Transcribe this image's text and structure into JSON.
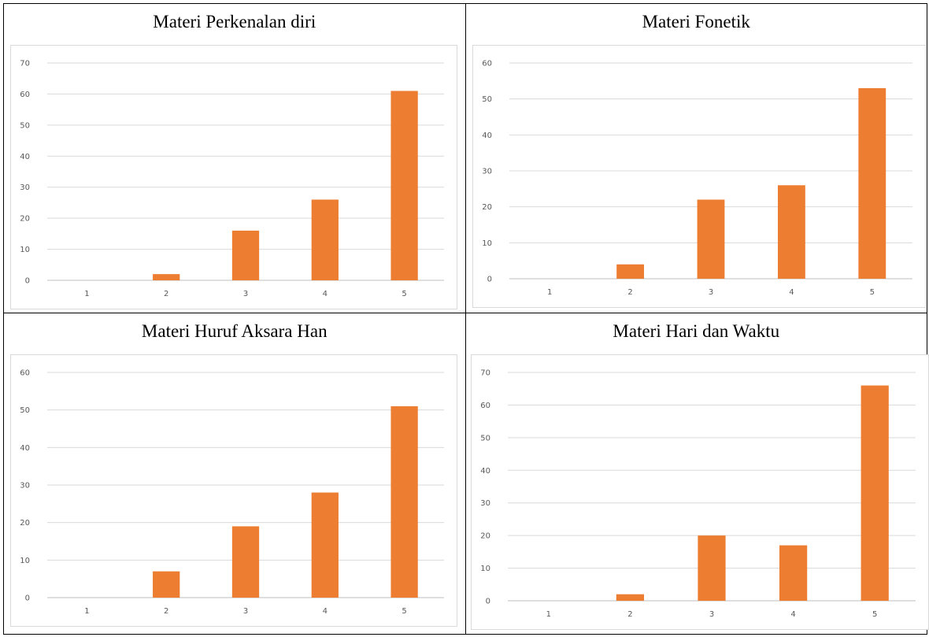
{
  "chart_data": [
    {
      "type": "bar",
      "title": "Materi Perkenalan diri",
      "categories": [
        "1",
        "2",
        "3",
        "4",
        "5"
      ],
      "values": [
        0,
        2,
        16,
        26,
        61
      ],
      "ylim": [
        0,
        70
      ],
      "yticks": [
        0,
        10,
        20,
        30,
        40,
        50,
        60,
        70
      ],
      "grid": true,
      "color": "#ED7D31"
    },
    {
      "type": "bar",
      "title": "Materi Fonetik",
      "categories": [
        "1",
        "2",
        "3",
        "4",
        "5"
      ],
      "values": [
        0,
        4,
        22,
        26,
        53
      ],
      "ylim": [
        0,
        60
      ],
      "yticks": [
        0,
        10,
        20,
        30,
        40,
        50,
        60
      ],
      "grid": true,
      "color": "#ED7D31"
    },
    {
      "type": "bar",
      "title": "Materi Huruf Aksara Han",
      "categories": [
        "1",
        "2",
        "3",
        "4",
        "5"
      ],
      "values": [
        0,
        7,
        19,
        28,
        51
      ],
      "ylim": [
        0,
        60
      ],
      "yticks": [
        0,
        10,
        20,
        30,
        40,
        50,
        60
      ],
      "grid": true,
      "color": "#ED7D31"
    },
    {
      "type": "bar",
      "title": "Materi Hari dan Waktu",
      "categories": [
        "1",
        "2",
        "3",
        "4",
        "5"
      ],
      "values": [
        0,
        2,
        20,
        17,
        66
      ],
      "ylim": [
        0,
        70
      ],
      "yticks": [
        0,
        10,
        20,
        30,
        40,
        50,
        60,
        70
      ],
      "grid": true,
      "color": "#ED7D31"
    }
  ]
}
